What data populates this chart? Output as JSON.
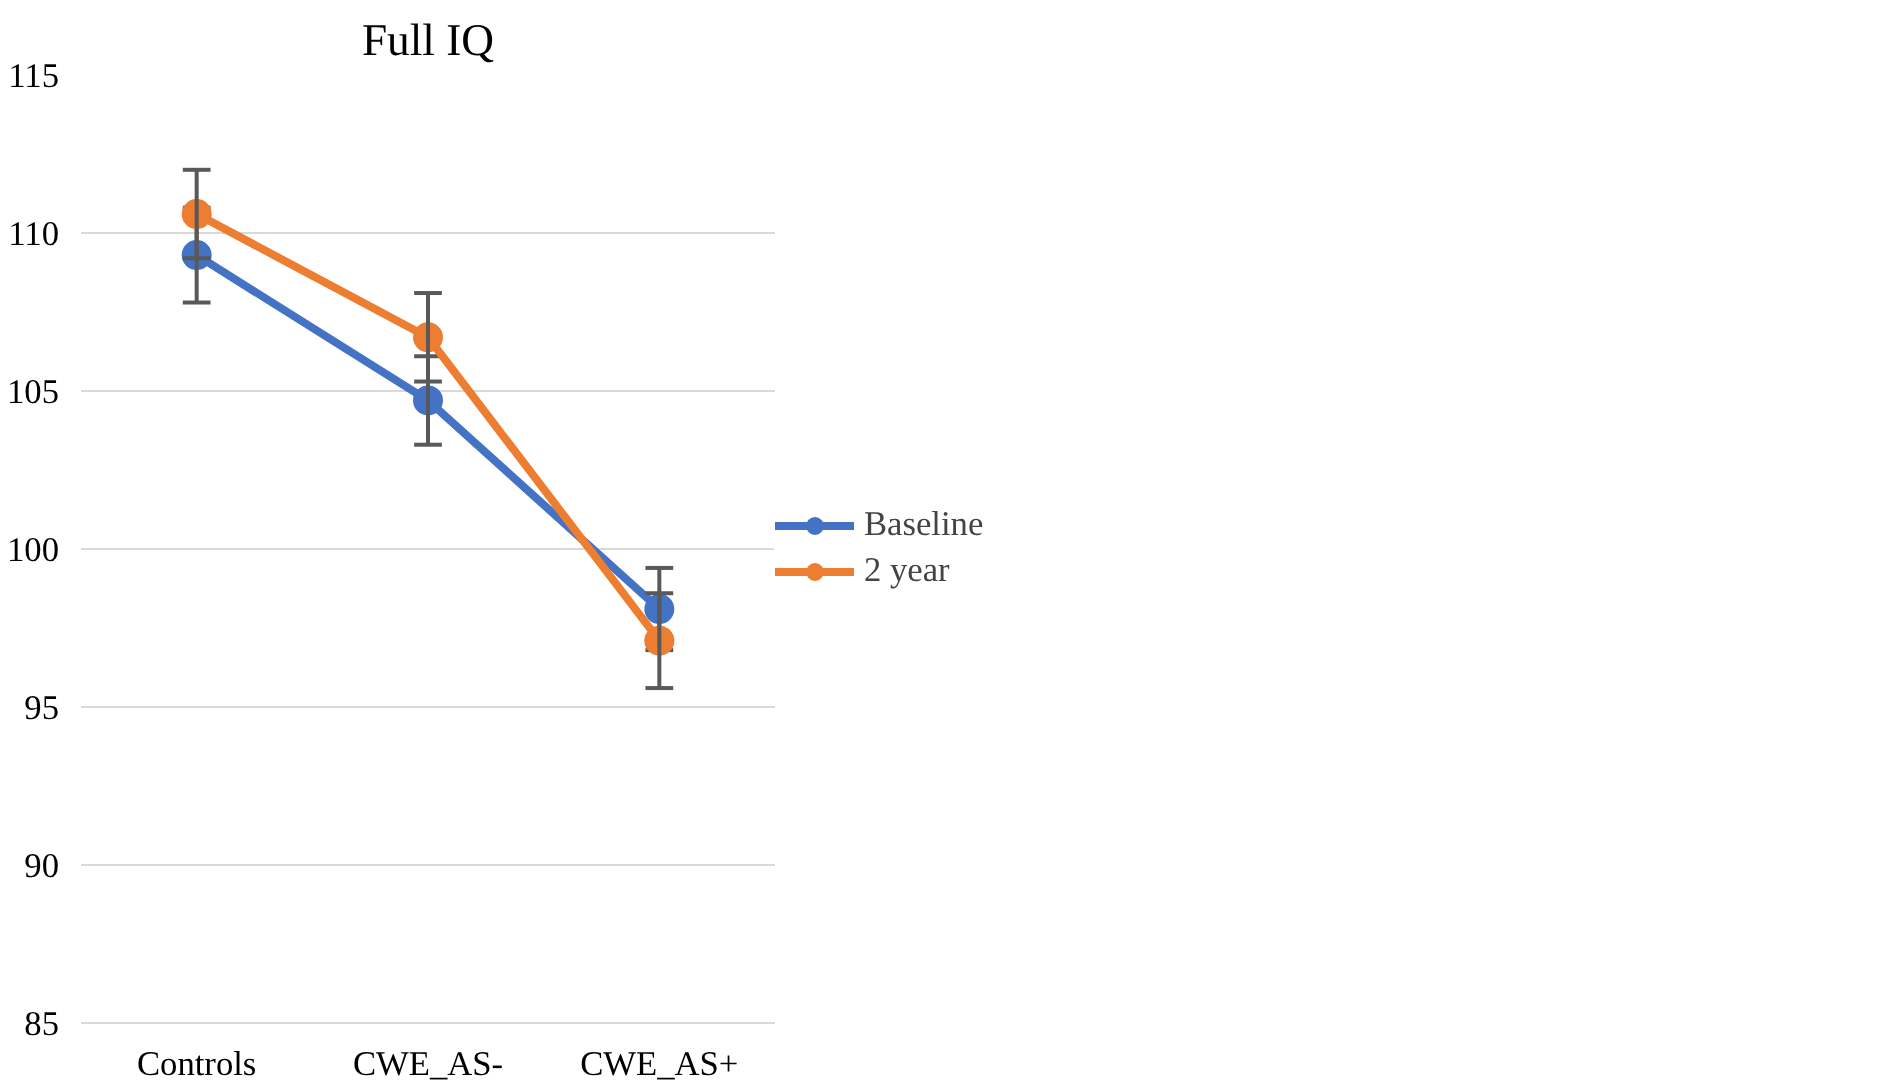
{
  "chart_data": {
    "type": "line",
    "title": "Full IQ",
    "categories": [
      "Controls",
      "CWE_AS-",
      "CWE_AS+"
    ],
    "series": [
      {
        "name": "Baseline",
        "color": "#4472c4",
        "values": [
          109.3,
          104.7,
          98.1
        ],
        "errors": [
          1.5,
          1.4,
          1.3
        ]
      },
      {
        "name": "2 year",
        "color": "#ed7d31",
        "values": [
          110.6,
          106.7,
          97.1
        ],
        "errors": [
          1.4,
          1.4,
          1.5
        ]
      }
    ],
    "ylim": [
      85,
      115
    ],
    "yticks": [
      85,
      90,
      95,
      100,
      105,
      110,
      115
    ],
    "grid": "y",
    "legend": "right",
    "marker": "circle",
    "line_style": "solid"
  }
}
